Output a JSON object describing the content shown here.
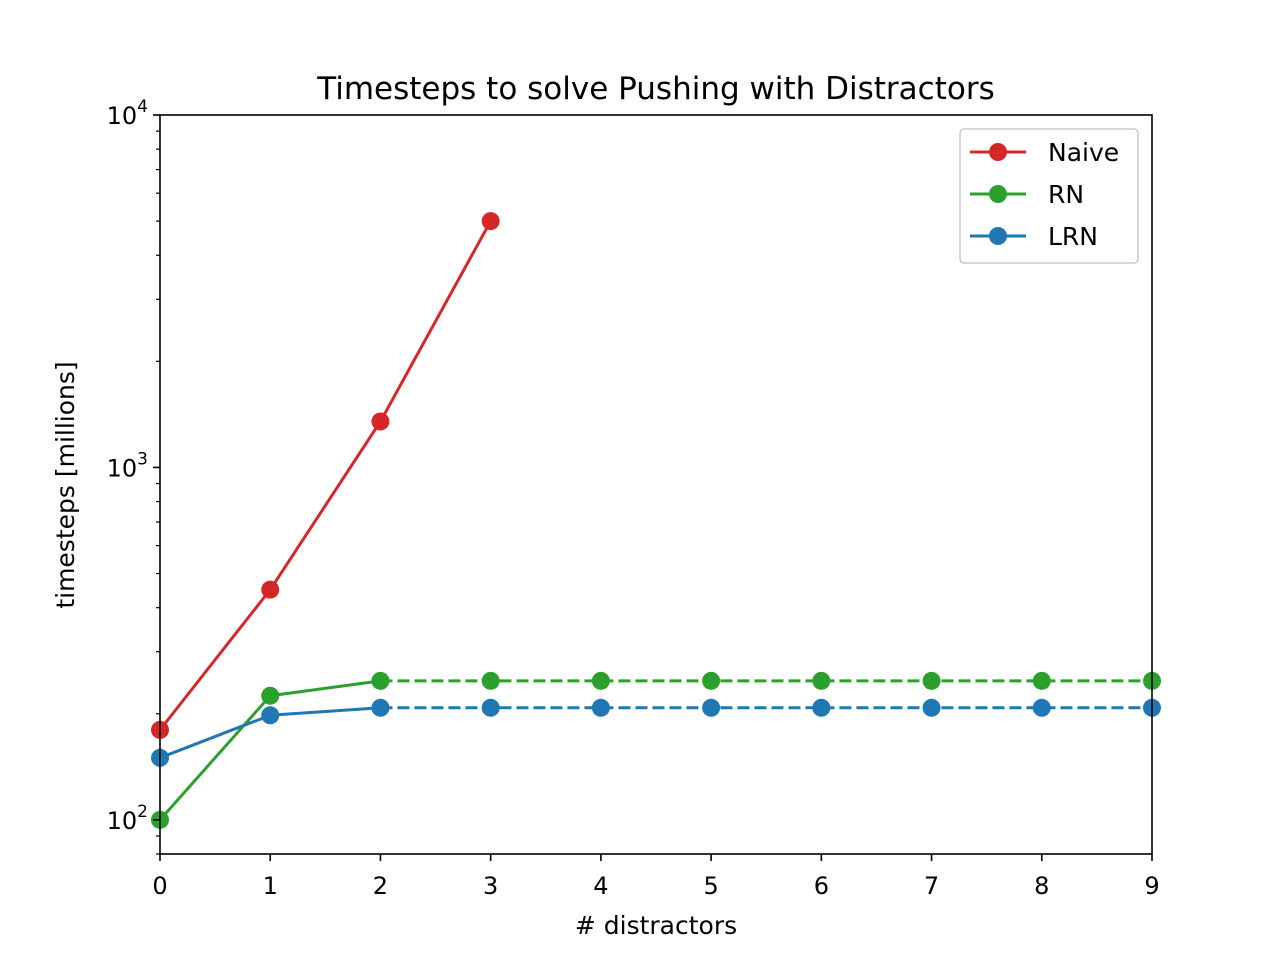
{
  "chart_data": {
    "type": "line",
    "title": "Timesteps to solve Pushing with Distractors",
    "xlabel": "# distractors",
    "ylabel": "timesteps [millions]",
    "yscale": "log",
    "xlim": [
      0,
      9
    ],
    "ylim": [
      80,
      10000
    ],
    "xticks": [
      0,
      1,
      2,
      3,
      4,
      5,
      6,
      7,
      8,
      9
    ],
    "yticks": [
      {
        "value": 100,
        "base": "10",
        "exp": "2"
      },
      {
        "value": 1000,
        "base": "10",
        "exp": "3"
      },
      {
        "value": 10000,
        "base": "10",
        "exp": "4"
      }
    ],
    "legend_position": "top-right",
    "series": [
      {
        "name": "Naive",
        "color": "#d62728",
        "x": [
          0,
          1,
          2,
          3
        ],
        "values": [
          180,
          450,
          1350,
          5000
        ],
        "dashed_from_index": null
      },
      {
        "name": "RN",
        "color": "#2ca02c",
        "x": [
          0,
          1,
          2,
          3,
          4,
          5,
          6,
          7,
          8,
          9
        ],
        "values": [
          100,
          225,
          248,
          248,
          248,
          248,
          248,
          248,
          248,
          248
        ],
        "dashed_from_index": 2
      },
      {
        "name": "LRN",
        "color": "#1f77b4",
        "x": [
          0,
          1,
          2,
          3,
          4,
          5,
          6,
          7,
          8,
          9
        ],
        "values": [
          150,
          198,
          208,
          208,
          208,
          208,
          208,
          208,
          208,
          208
        ],
        "dashed_from_index": 2
      }
    ]
  }
}
